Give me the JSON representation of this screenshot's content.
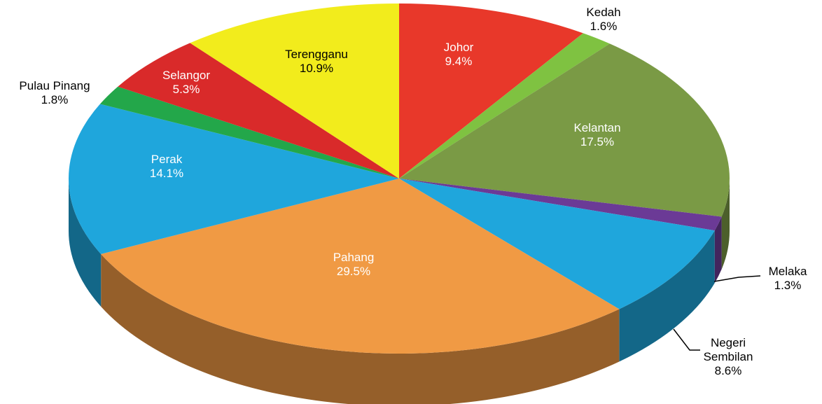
{
  "chart_data": {
    "type": "pie",
    "categories": [
      "Johor",
      "Kedah",
      "Kelantan",
      "Melaka",
      "Negeri Sembilan",
      "Pahang",
      "Perak",
      "Pulau Pinang",
      "Selangor",
      "Terengganu"
    ],
    "values": [
      9.4,
      1.6,
      17.5,
      1.3,
      8.6,
      29.5,
      14.1,
      1.8,
      5.3,
      10.9
    ],
    "value_labels": [
      "9.4%",
      "1.6%",
      "17.5%",
      "1.3%",
      "8.6%",
      "29.5%",
      "14.1%",
      "1.8%",
      "5.3%",
      "10.9%"
    ],
    "colors": [
      "#e8382a",
      "#7fc241",
      "#7a9a45",
      "#6b3a96",
      "#1fa6dc",
      "#f09a44",
      "#1fa6dc",
      "#23a74a",
      "#d92a2a",
      "#f2ec1c"
    ]
  }
}
